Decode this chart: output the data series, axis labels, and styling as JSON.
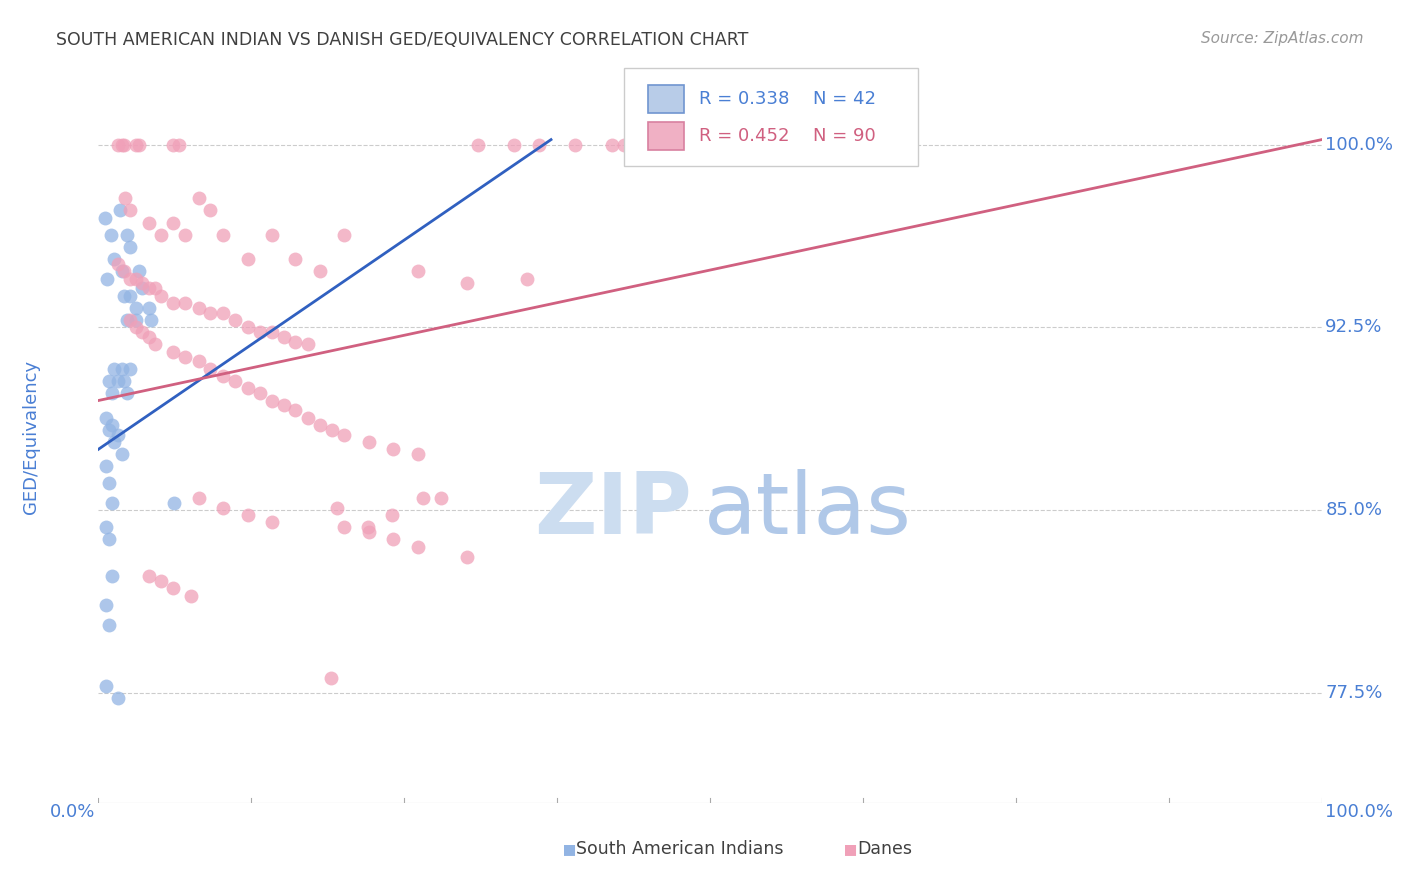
{
  "title": "SOUTH AMERICAN INDIAN VS DANISH GED/EQUIVALENCY CORRELATION CHART",
  "source": "Source: ZipAtlas.com",
  "ylabel": "GED/Equivalency",
  "yticks": [
    "77.5%",
    "85.0%",
    "92.5%",
    "100.0%"
  ],
  "ytick_vals": [
    0.775,
    0.85,
    0.925,
    1.0
  ],
  "xlim": [
    0.0,
    1.0
  ],
  "ylim": [
    0.73,
    1.03
  ],
  "blue_color": "#92b4e3",
  "pink_color": "#f0a0b8",
  "blue_line_color": "#3060c0",
  "pink_line_color": "#d06080",
  "title_color": "#404040",
  "tick_label_color": "#4a7fd4",
  "ylabel_color": "#4a7fd4",
  "legend_blue_r": "R = 0.338",
  "legend_blue_n": "N = 42",
  "legend_pink_r": "R = 0.452",
  "legend_pink_n": "N = 90",
  "blue_line_x": [
    0.0,
    0.37
  ],
  "blue_line_y": [
    0.875,
    1.002
  ],
  "pink_line_x": [
    0.0,
    1.0
  ],
  "pink_line_y": [
    0.895,
    1.002
  ],
  "blue_scatter_x": [
    0.005,
    0.007,
    0.01,
    0.013,
    0.018,
    0.019,
    0.021,
    0.023,
    0.023,
    0.026,
    0.026,
    0.031,
    0.031,
    0.033,
    0.036,
    0.041,
    0.043,
    0.019,
    0.021,
    0.023,
    0.026,
    0.009,
    0.011,
    0.013,
    0.016,
    0.006,
    0.009,
    0.011,
    0.013,
    0.016,
    0.019,
    0.006,
    0.009,
    0.011,
    0.006,
    0.009,
    0.011,
    0.006,
    0.009,
    0.062,
    0.006,
    0.016
  ],
  "blue_scatter_y": [
    0.97,
    0.945,
    0.963,
    0.953,
    0.973,
    0.948,
    0.938,
    0.928,
    0.963,
    0.958,
    0.938,
    0.933,
    0.928,
    0.948,
    0.941,
    0.933,
    0.928,
    0.908,
    0.903,
    0.898,
    0.908,
    0.903,
    0.898,
    0.908,
    0.903,
    0.888,
    0.883,
    0.885,
    0.878,
    0.881,
    0.873,
    0.868,
    0.861,
    0.853,
    0.843,
    0.838,
    0.823,
    0.811,
    0.803,
    0.853,
    0.778,
    0.773
  ],
  "pink_scatter_x": [
    0.016,
    0.019,
    0.021,
    0.031,
    0.033,
    0.061,
    0.066,
    0.31,
    0.34,
    0.36,
    0.39,
    0.42,
    0.43,
    0.022,
    0.026,
    0.041,
    0.051,
    0.061,
    0.071,
    0.082,
    0.091,
    0.102,
    0.122,
    0.142,
    0.161,
    0.181,
    0.201,
    0.261,
    0.301,
    0.35,
    0.016,
    0.021,
    0.026,
    0.031,
    0.036,
    0.041,
    0.046,
    0.051,
    0.061,
    0.071,
    0.082,
    0.091,
    0.102,
    0.112,
    0.122,
    0.132,
    0.142,
    0.152,
    0.161,
    0.171,
    0.026,
    0.031,
    0.036,
    0.041,
    0.046,
    0.061,
    0.071,
    0.082,
    0.091,
    0.102,
    0.112,
    0.122,
    0.132,
    0.142,
    0.152,
    0.161,
    0.171,
    0.181,
    0.191,
    0.201,
    0.221,
    0.241,
    0.261,
    0.082,
    0.102,
    0.122,
    0.142,
    0.201,
    0.221,
    0.241,
    0.261,
    0.301,
    0.195,
    0.22,
    0.265,
    0.28,
    0.19,
    0.24,
    0.041,
    0.051,
    0.061,
    0.076
  ],
  "pink_scatter_y": [
    1.0,
    1.0,
    1.0,
    1.0,
    1.0,
    1.0,
    1.0,
    1.0,
    1.0,
    1.0,
    1.0,
    1.0,
    1.0,
    0.978,
    0.973,
    0.968,
    0.963,
    0.968,
    0.963,
    0.978,
    0.973,
    0.963,
    0.953,
    0.963,
    0.953,
    0.948,
    0.963,
    0.948,
    0.943,
    0.945,
    0.951,
    0.948,
    0.945,
    0.945,
    0.943,
    0.941,
    0.941,
    0.938,
    0.935,
    0.935,
    0.933,
    0.931,
    0.931,
    0.928,
    0.925,
    0.923,
    0.923,
    0.921,
    0.919,
    0.918,
    0.928,
    0.925,
    0.923,
    0.921,
    0.918,
    0.915,
    0.913,
    0.911,
    0.908,
    0.905,
    0.903,
    0.9,
    0.898,
    0.895,
    0.893,
    0.891,
    0.888,
    0.885,
    0.883,
    0.881,
    0.878,
    0.875,
    0.873,
    0.855,
    0.851,
    0.848,
    0.845,
    0.843,
    0.841,
    0.838,
    0.835,
    0.831,
    0.851,
    0.843,
    0.855,
    0.855,
    0.781,
    0.848,
    0.823,
    0.821,
    0.818,
    0.815
  ]
}
